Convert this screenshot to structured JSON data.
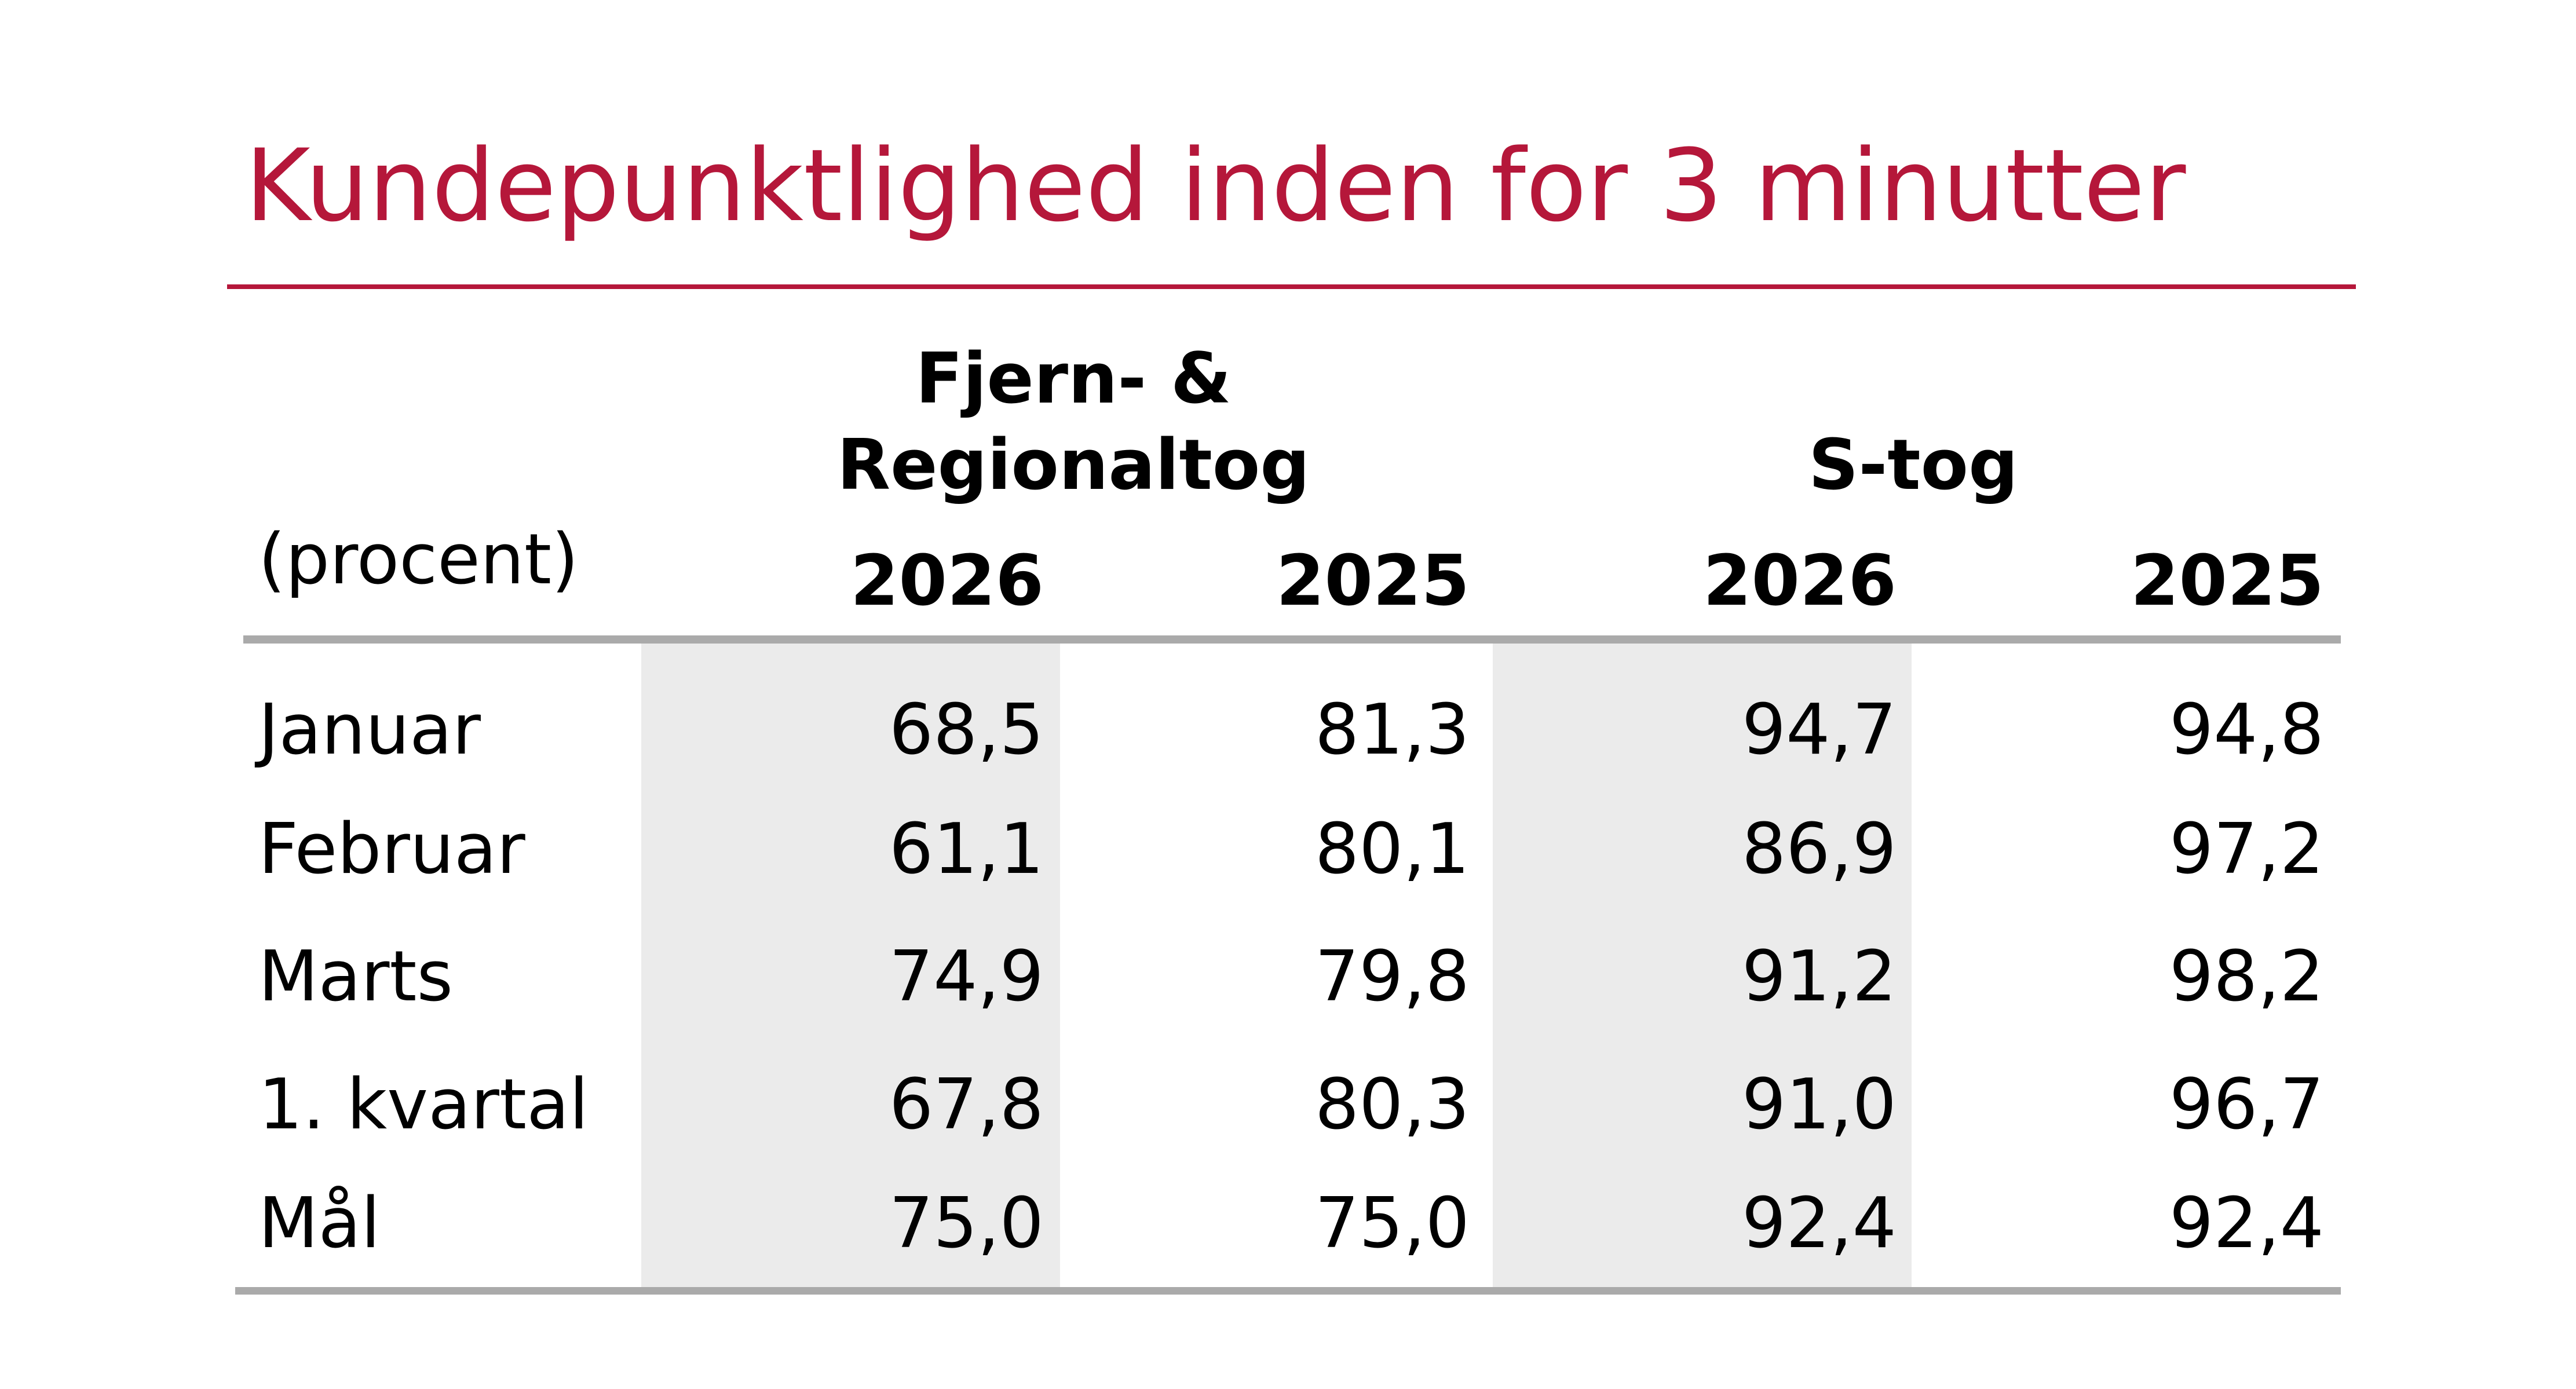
{
  "title": "Kundepunktlighed inden for 3 minutter",
  "table": {
    "unit": "(procent)",
    "groups": [
      {
        "lines": [
          "Fjern- &",
          "Regionaltog"
        ],
        "years": [
          "2026",
          "2025"
        ]
      },
      {
        "lines": [
          "S-tog"
        ],
        "years": [
          "2026",
          "2025"
        ]
      }
    ],
    "rows": [
      [
        "Januar",
        "68,5",
        "81,3",
        "94,7",
        "94,8"
      ],
      [
        "Februar",
        "61,1",
        "80,1",
        "86,9",
        "97,2"
      ],
      [
        "Marts",
        "74,9",
        "79,8",
        "91,2",
        "98,2"
      ],
      [
        "1. kvartal",
        "67,8",
        "80,3",
        "91,0",
        "96,7"
      ],
      [
        "Mål",
        "75,0",
        "75,0",
        "92,4",
        "92,4"
      ]
    ]
  }
}
